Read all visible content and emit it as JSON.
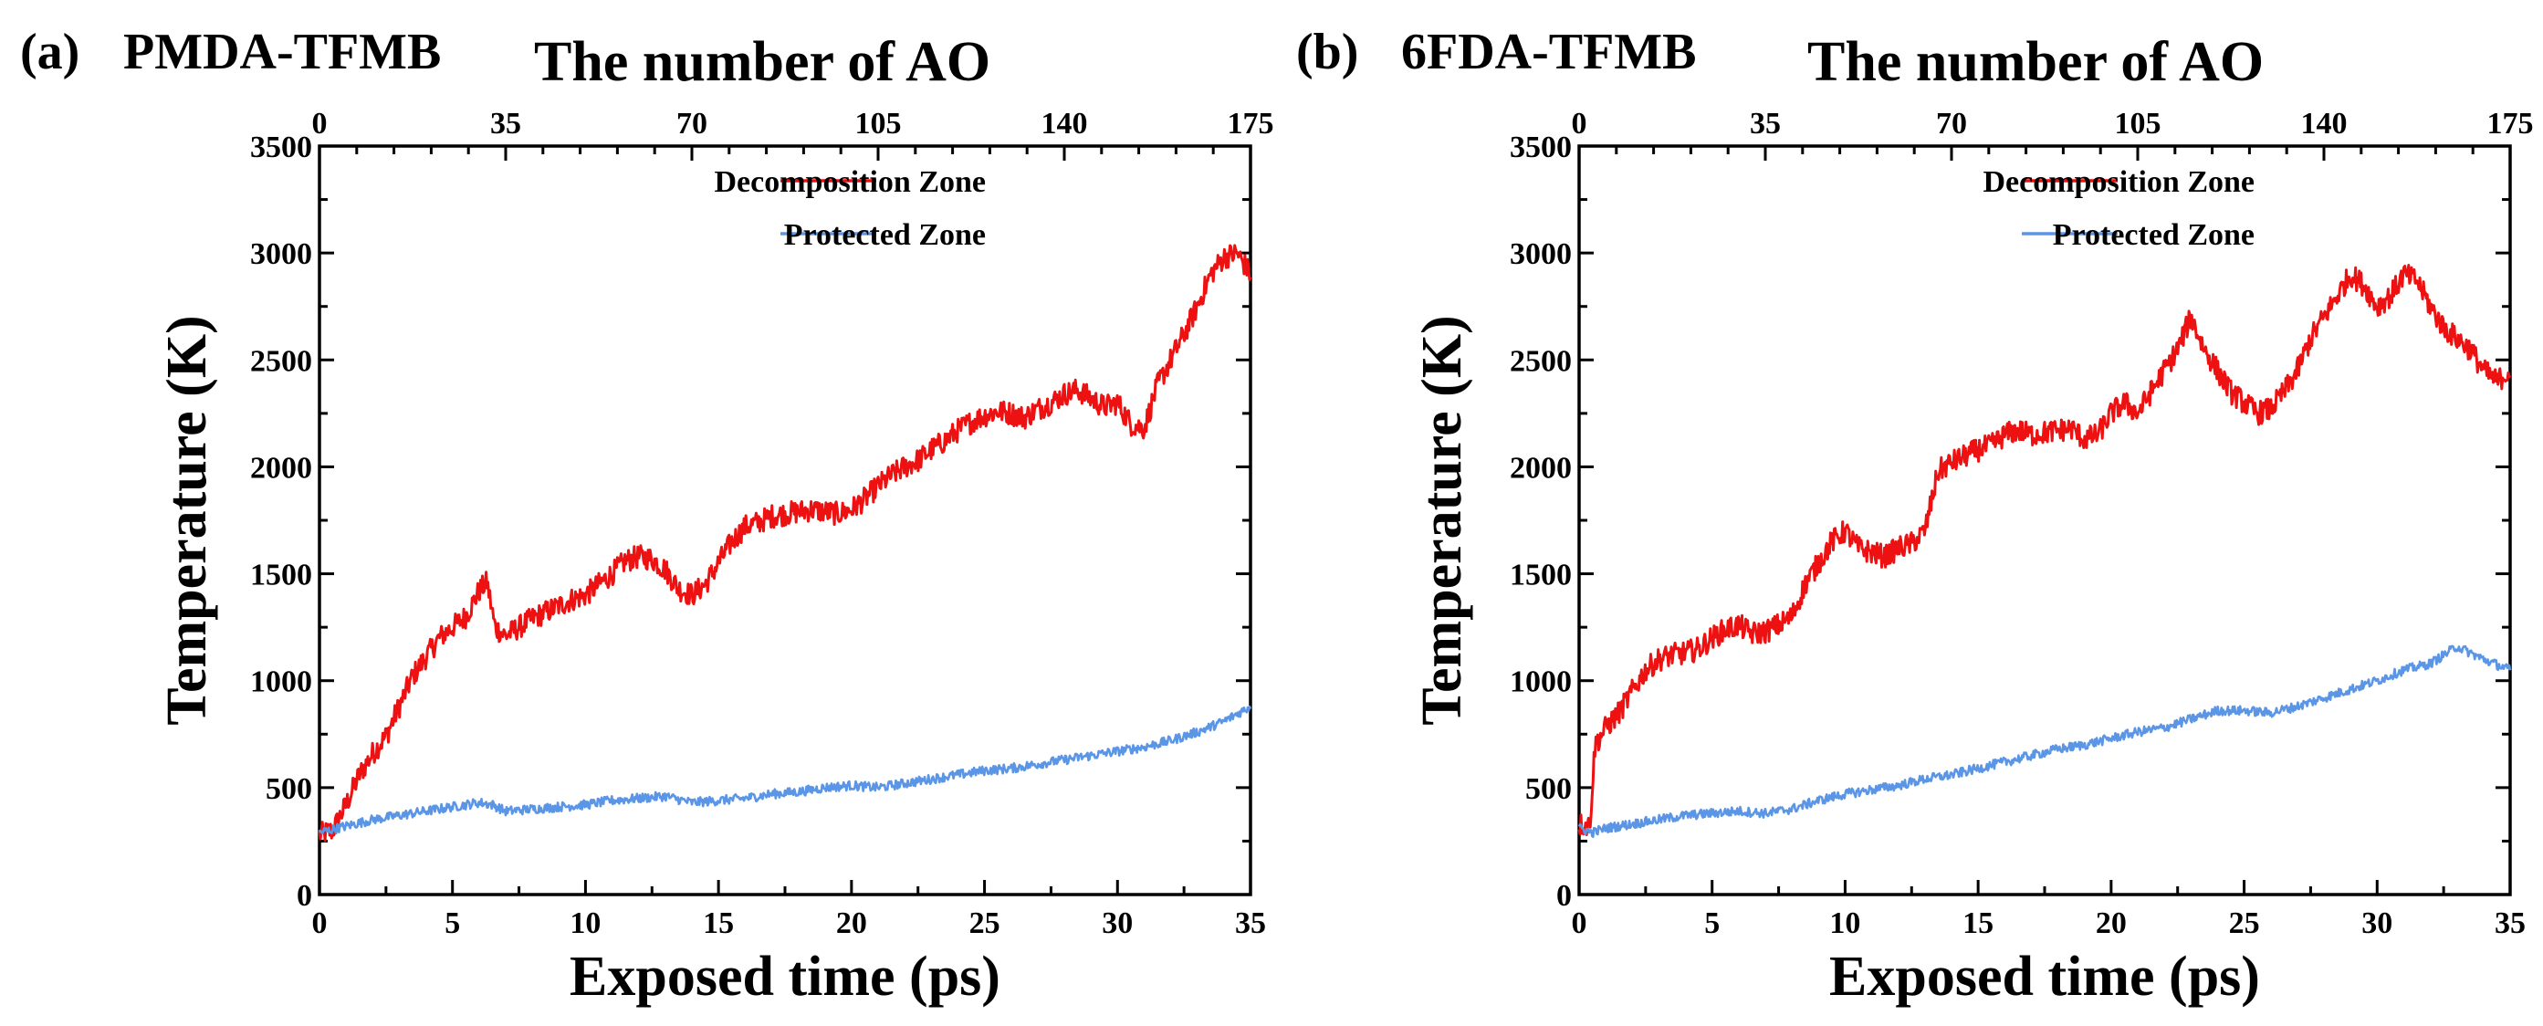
{
  "chart_data": [
    {
      "type": "line",
      "panel_label": "(a)",
      "panel_title": "PMDA-TFMB",
      "xlabel": "Exposed time (ps)",
      "ylabel": "Temperature (K)",
      "top_xlabel": "The number of AO",
      "xlim": [
        0,
        35
      ],
      "ylim": [
        0,
        3500
      ],
      "top_xlim": [
        0,
        175
      ],
      "xticks": [
        "0",
        "5",
        "10",
        "15",
        "20",
        "25",
        "30",
        "35"
      ],
      "yticks": [
        "0",
        "500",
        "1000",
        "1500",
        "2000",
        "2500",
        "3000",
        "3500"
      ],
      "top_xticks": [
        "0",
        "35",
        "70",
        "105",
        "140",
        "175"
      ],
      "legend_position": "top-right",
      "series": [
        {
          "name": "Decomposition Zone",
          "color": "#ee1111",
          "x": [
            0,
            0.5,
            1,
            1.5,
            2,
            2.5,
            3,
            3.5,
            4,
            4.5,
            5,
            5.5,
            6,
            6.3,
            6.6,
            7,
            7.5,
            8,
            8.5,
            9,
            9.5,
            10,
            10.5,
            11,
            11.5,
            12,
            12.5,
            13,
            13.5,
            14,
            14.5,
            15,
            15.5,
            16,
            16.5,
            17,
            17.5,
            18,
            18.5,
            19,
            19.5,
            20,
            20.5,
            21,
            21.5,
            22,
            22.5,
            23,
            23.5,
            24,
            24.5,
            25,
            25.5,
            26,
            26.5,
            27,
            27.5,
            28,
            28.5,
            29,
            29.5,
            30,
            30.5,
            31,
            31.5,
            32,
            32.5,
            33,
            33.5,
            34,
            34.5,
            35
          ],
          "values": [
            280,
            300,
            420,
            560,
            660,
            740,
            880,
            1020,
            1110,
            1200,
            1250,
            1300,
            1420,
            1460,
            1250,
            1210,
            1250,
            1290,
            1320,
            1350,
            1380,
            1400,
            1450,
            1500,
            1560,
            1580,
            1570,
            1520,
            1430,
            1400,
            1450,
            1550,
            1650,
            1720,
            1740,
            1770,
            1780,
            1790,
            1800,
            1790,
            1780,
            1800,
            1850,
            1910,
            1960,
            2000,
            2030,
            2080,
            2120,
            2170,
            2210,
            2240,
            2260,
            2250,
            2230,
            2270,
            2300,
            2340,
            2360,
            2320,
            2280,
            2300,
            2200,
            2180,
            2380,
            2500,
            2620,
            2750,
            2900,
            2980,
            3000,
            2900
          ]
        },
        {
          "name": "Protected Zone",
          "color": "#5b96e6",
          "x": [
            0,
            1,
            2,
            3,
            4,
            5,
            6,
            6.5,
            7,
            8,
            9,
            10,
            11,
            12,
            13,
            14,
            15,
            16,
            17,
            18,
            19,
            20,
            21,
            22,
            23,
            24,
            25,
            26,
            27,
            28,
            29,
            30,
            31,
            32,
            33,
            34,
            35
          ],
          "values": [
            290,
            320,
            350,
            370,
            390,
            410,
            430,
            420,
            390,
            400,
            410,
            420,
            440,
            450,
            460,
            430,
            440,
            450,
            470,
            480,
            500,
            510,
            500,
            520,
            540,
            560,
            580,
            590,
            610,
            630,
            650,
            670,
            690,
            720,
            760,
            810,
            880
          ]
        }
      ]
    },
    {
      "type": "line",
      "panel_label": "(b)",
      "panel_title": "6FDA-TFMB",
      "xlabel": "Exposed time (ps)",
      "ylabel": "Temperature (K)",
      "top_xlabel": "The number of AO",
      "xlim": [
        0,
        35
      ],
      "ylim": [
        0,
        3500
      ],
      "top_xlim": [
        0,
        175
      ],
      "xticks": [
        "0",
        "5",
        "10",
        "15",
        "20",
        "25",
        "30",
        "35"
      ],
      "yticks": [
        "0",
        "500",
        "1000",
        "1500",
        "2000",
        "2500",
        "3000",
        "3500"
      ],
      "top_xticks": [
        "0",
        "35",
        "70",
        "105",
        "140",
        "175"
      ],
      "legend_position": "top-right",
      "series": [
        {
          "name": "Decomposition Zone",
          "color": "#ee1111",
          "x": [
            0,
            0.4,
            0.6,
            1,
            1.5,
            2,
            2.5,
            3,
            3.5,
            4,
            4.5,
            5,
            5.5,
            6,
            6.5,
            7,
            7.5,
            8,
            8.5,
            9,
            9.5,
            10,
            10.5,
            11,
            11.5,
            12,
            12.5,
            13,
            13.5,
            14,
            14.5,
            15,
            15.5,
            16,
            16.5,
            17,
            17.5,
            18,
            18.5,
            19,
            19.5,
            20,
            20.5,
            21,
            21.5,
            22,
            22.5,
            23,
            23.5,
            24,
            24.5,
            25,
            25.5,
            26,
            26.5,
            27,
            27.5,
            28,
            28.5,
            29,
            29.5,
            30,
            30.5,
            31,
            31.5,
            32,
            32.5,
            33,
            33.5,
            34,
            34.5,
            35
          ],
          "values": [
            330,
            320,
            700,
            780,
            850,
            950,
            1050,
            1100,
            1120,
            1130,
            1150,
            1200,
            1240,
            1260,
            1220,
            1230,
            1260,
            1300,
            1450,
            1550,
            1650,
            1700,
            1620,
            1600,
            1580,
            1620,
            1640,
            1700,
            1980,
            2020,
            2050,
            2080,
            2100,
            2150,
            2170,
            2150,
            2160,
            2170,
            2180,
            2130,
            2150,
            2250,
            2300,
            2250,
            2350,
            2450,
            2550,
            2700,
            2550,
            2450,
            2350,
            2300,
            2250,
            2270,
            2350,
            2450,
            2600,
            2700,
            2800,
            2900,
            2850,
            2750,
            2800,
            2900,
            2870,
            2750,
            2650,
            2600,
            2550,
            2450,
            2400,
            2450
          ]
        },
        {
          "name": "Protected Zone",
          "color": "#5b96e6",
          "x": [
            0,
            0.5,
            1,
            2,
            3,
            4,
            5,
            6,
            7,
            8,
            9,
            10,
            11,
            12,
            13,
            14,
            15,
            16,
            17,
            18,
            19,
            20,
            21,
            22,
            23,
            24,
            25,
            26,
            27,
            28,
            29,
            30,
            31,
            32,
            33,
            34,
            35
          ],
          "values": [
            310,
            290,
            310,
            330,
            350,
            370,
            380,
            390,
            380,
            400,
            440,
            470,
            490,
            510,
            540,
            560,
            590,
            620,
            650,
            680,
            700,
            730,
            760,
            780,
            820,
            860,
            860,
            850,
            880,
            920,
            960,
            1000,
            1050,
            1080,
            1160,
            1100,
            1050
          ]
        }
      ]
    }
  ]
}
